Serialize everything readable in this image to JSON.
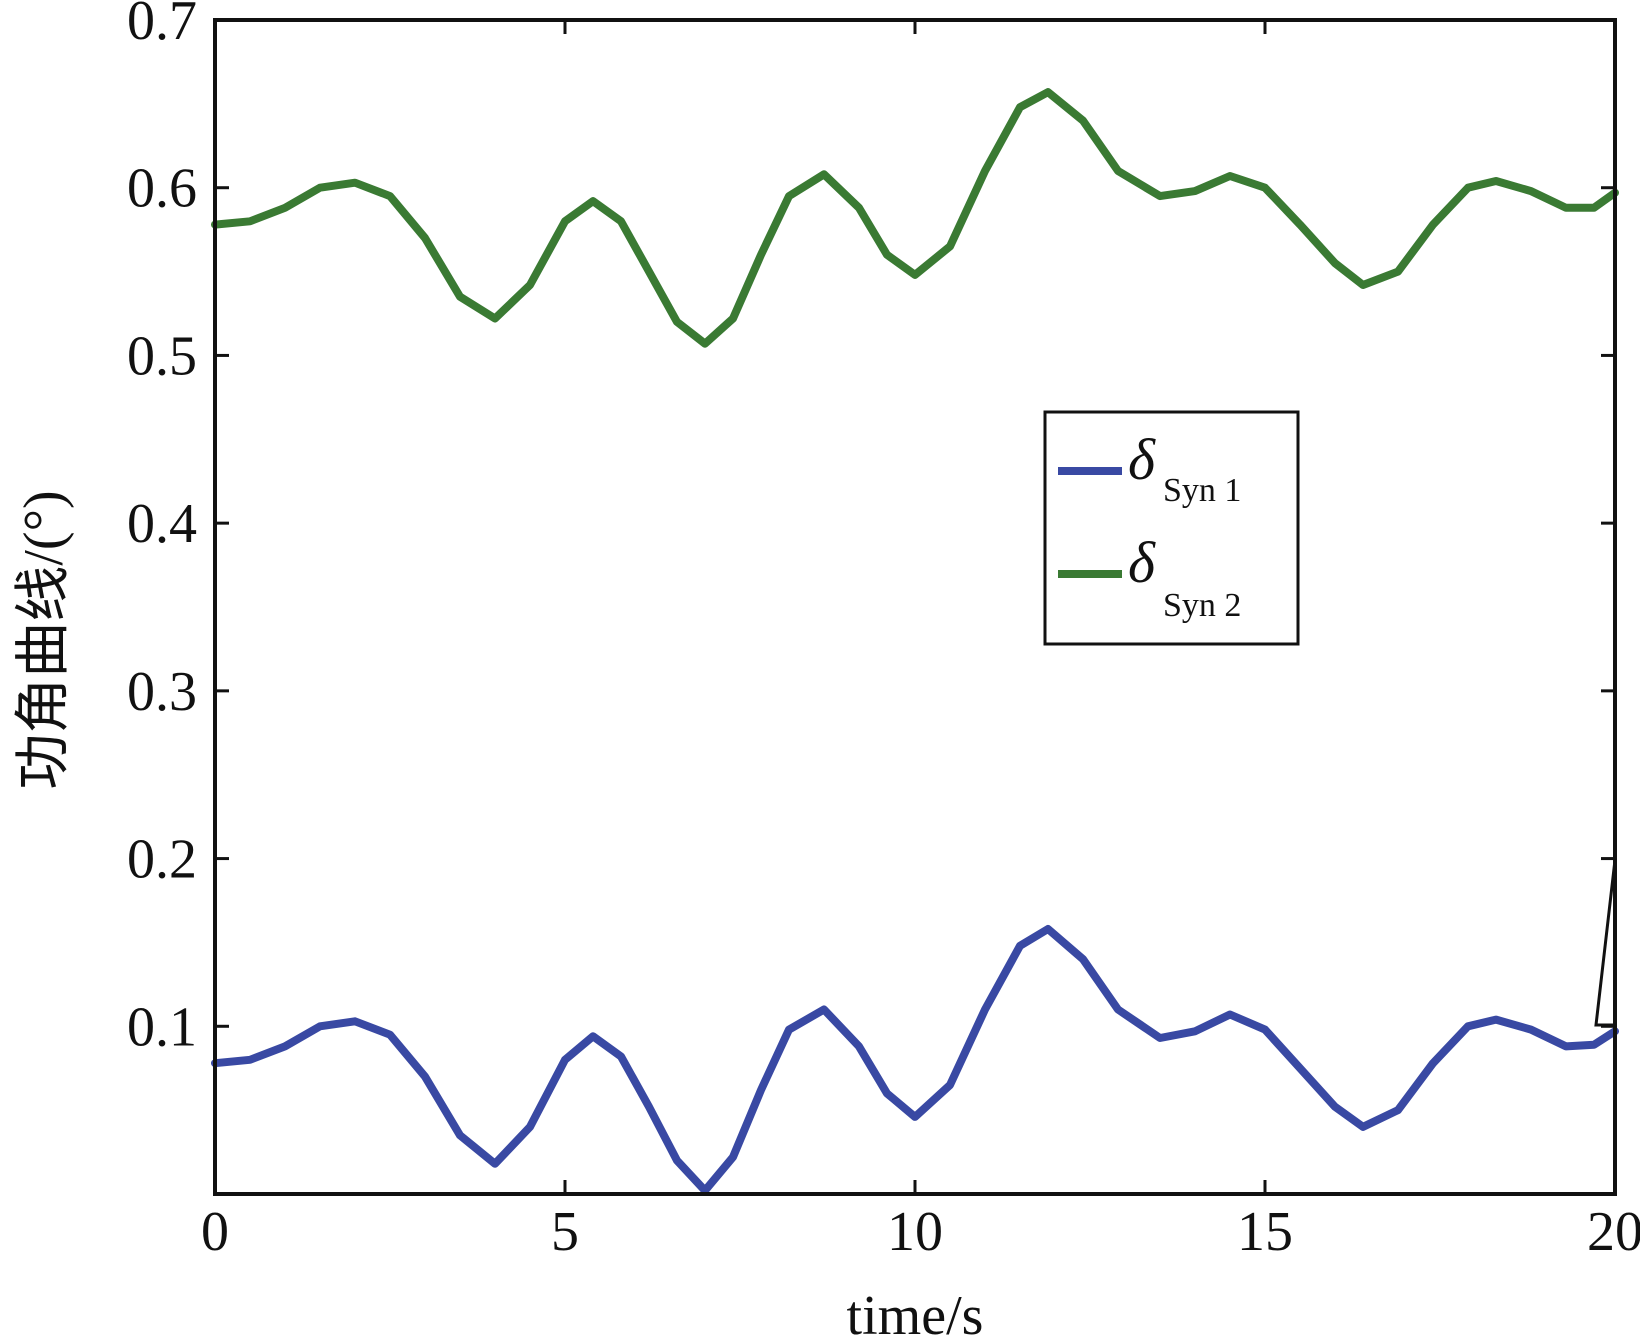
{
  "chart_data": {
    "type": "line",
    "title": "",
    "xlabel": "time/s",
    "ylabel": "功角曲线/(°)",
    "xlim": [
      0,
      20
    ],
    "ylim": [
      0,
      0.7
    ],
    "xticks": [
      "0",
      "5",
      "10",
      "15",
      "20"
    ],
    "yticks": [
      "0.1",
      "0.2",
      "0.3",
      "0.4",
      "0.5",
      "0.6",
      "0.7"
    ],
    "grid": false,
    "legend_position": "center-right",
    "series": [
      {
        "name": "δ Syn 1",
        "symbol": "δ",
        "subscript": "Syn 1",
        "color": "#3949a3",
        "x": [
          0,
          0.5,
          1.0,
          1.5,
          2.0,
          2.5,
          3.0,
          3.5,
          4.0,
          4.5,
          5.0,
          5.4,
          5.8,
          6.2,
          6.6,
          7.0,
          7.4,
          7.8,
          8.2,
          8.7,
          9.2,
          9.6,
          10.0,
          10.5,
          11.0,
          11.5,
          11.9,
          12.4,
          12.9,
          13.5,
          14.0,
          14.5,
          15.0,
          15.5,
          16.0,
          16.4,
          16.9,
          17.4,
          17.9,
          18.3,
          18.8,
          19.3,
          19.7,
          20.0
        ],
        "y": [
          0.078,
          0.08,
          0.088,
          0.1,
          0.103,
          0.095,
          0.07,
          0.035,
          0.018,
          0.04,
          0.08,
          0.094,
          0.082,
          0.052,
          0.02,
          0.002,
          0.022,
          0.062,
          0.098,
          0.11,
          0.088,
          0.06,
          0.046,
          0.065,
          0.11,
          0.148,
          0.158,
          0.14,
          0.11,
          0.093,
          0.097,
          0.107,
          0.098,
          0.075,
          0.052,
          0.04,
          0.05,
          0.078,
          0.1,
          0.104,
          0.098,
          0.088,
          0.089,
          0.097
        ]
      },
      {
        "name": "δ Syn 2",
        "symbol": "δ",
        "subscript": "Syn 2",
        "color": "#3a7a33",
        "x": [
          0,
          0.5,
          1.0,
          1.5,
          2.0,
          2.5,
          3.0,
          3.5,
          4.0,
          4.5,
          5.0,
          5.4,
          5.8,
          6.2,
          6.6,
          7.0,
          7.4,
          7.8,
          8.2,
          8.7,
          9.2,
          9.6,
          10.0,
          10.5,
          11.0,
          11.5,
          11.9,
          12.4,
          12.9,
          13.5,
          14.0,
          14.5,
          15.0,
          15.5,
          16.0,
          16.4,
          16.9,
          17.4,
          17.9,
          18.3,
          18.8,
          19.3,
          19.7,
          20.0
        ],
        "y": [
          0.578,
          0.58,
          0.588,
          0.6,
          0.603,
          0.595,
          0.57,
          0.535,
          0.522,
          0.542,
          0.58,
          0.592,
          0.58,
          0.55,
          0.52,
          0.507,
          0.522,
          0.56,
          0.595,
          0.608,
          0.588,
          0.56,
          0.548,
          0.565,
          0.61,
          0.648,
          0.657,
          0.64,
          0.61,
          0.595,
          0.598,
          0.607,
          0.6,
          0.578,
          0.555,
          0.542,
          0.55,
          0.578,
          0.6,
          0.604,
          0.598,
          0.588,
          0.588,
          0.597
        ]
      }
    ]
  }
}
